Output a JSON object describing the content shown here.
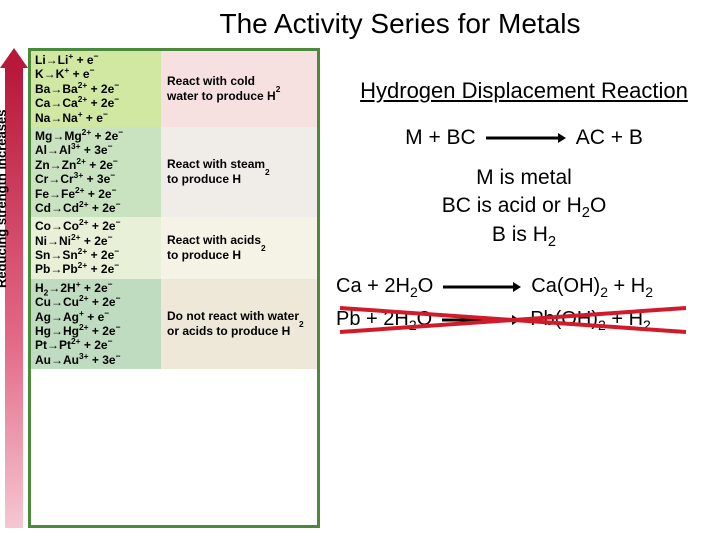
{
  "title": "The Activity Series for Metals",
  "arrow_label": "Reducing strength increases",
  "colors": {
    "border": "#4a8a3a",
    "arrow_top": "#b8183a",
    "arrow_bottom": "#f5c7d3",
    "cross": "#d11a2a",
    "g1l": "#d1e8a3",
    "g1r": "#f7e0e0",
    "g2l": "#c9e3c0",
    "g2r": "#f0ede8",
    "g3l": "#e8f0d8",
    "g3r": "#f5f3e6",
    "g4l": "#c0dcc0",
    "g4r": "#ede8d8"
  },
  "groups": [
    {
      "desc_html": "React with cold<br>water to produce H<sub>2</sub>",
      "rows": [
        "Li→Li<sup>+</sup> + e<sup>−</sup>",
        "K→K<sup>+</sup> + e<sup>−</sup>",
        "Ba→Ba<sup>2+</sup> + 2e<sup>−</sup>",
        "Ca→Ca<sup>2+</sup> + 2e<sup>−</sup>",
        "Na→Na<sup>+</sup> + e<sup>−</sup>"
      ]
    },
    {
      "desc_html": "React with steam<br>to produce H<sub>2</sub>",
      "rows": [
        "Mg→Mg<sup>2+</sup> + 2e<sup>−</sup>",
        "Al→Al<sup>3+</sup> + 3e<sup>−</sup>",
        "Zn→Zn<sup>2+</sup> + 2e<sup>−</sup>",
        "Cr→Cr<sup>3+</sup> + 3e<sup>−</sup>",
        "Fe→Fe<sup>2+</sup> + 2e<sup>−</sup>",
        "Cd→Cd<sup>2+</sup> + 2e<sup>−</sup>"
      ]
    },
    {
      "desc_html": "React with acids<br>to produce H<sub>2</sub>",
      "rows": [
        "Co→Co<sup>2+</sup> + 2e<sup>−</sup>",
        "Ni→Ni<sup>2+</sup> + 2e<sup>−</sup>",
        "Sn→Sn<sup>2+</sup> + 2e<sup>−</sup>",
        "Pb→Pb<sup>2+</sup> + 2e<sup>−</sup>"
      ]
    },
    {
      "desc_html": "Do not react with water<br>or acids to produce H<sub>2</sub>",
      "rows": [
        "H<sub>2</sub>→2H<sup>+</sup> + 2e<sup>−</sup>",
        "Cu→Cu<sup>2+</sup> + 2e<sup>−</sup>",
        "Ag→Ag<sup>+</sup> + e<sup>−</sup>",
        "Hg→Hg<sup>2+</sup> + 2e<sup>−</sup>",
        "Pt→Pt<sup>2+</sup> + 2e<sup>−</sup>",
        "Au→Au<sup>3+</sup> + 3e<sup>−</sup>"
      ]
    }
  ],
  "right": {
    "heading": "Hydrogen Displacement Reaction",
    "eq1_left": "M + BC",
    "eq1_right": "AC + B",
    "def1": "M is metal",
    "def2_html": "BC is acid or H<sub>2</sub>O",
    "def3_html": "B is H<sub>2</sub>",
    "eq2_left_html": "Ca + 2H<sub>2</sub>O",
    "eq2_right_html": "Ca(OH)<sub>2</sub> + H<sub>2</sub>",
    "eq3_left_html": "Pb + 2H<sub>2</sub>O",
    "eq3_right_html": "Pb(OH)<sub>2</sub> + H<sub>2</sub>"
  }
}
